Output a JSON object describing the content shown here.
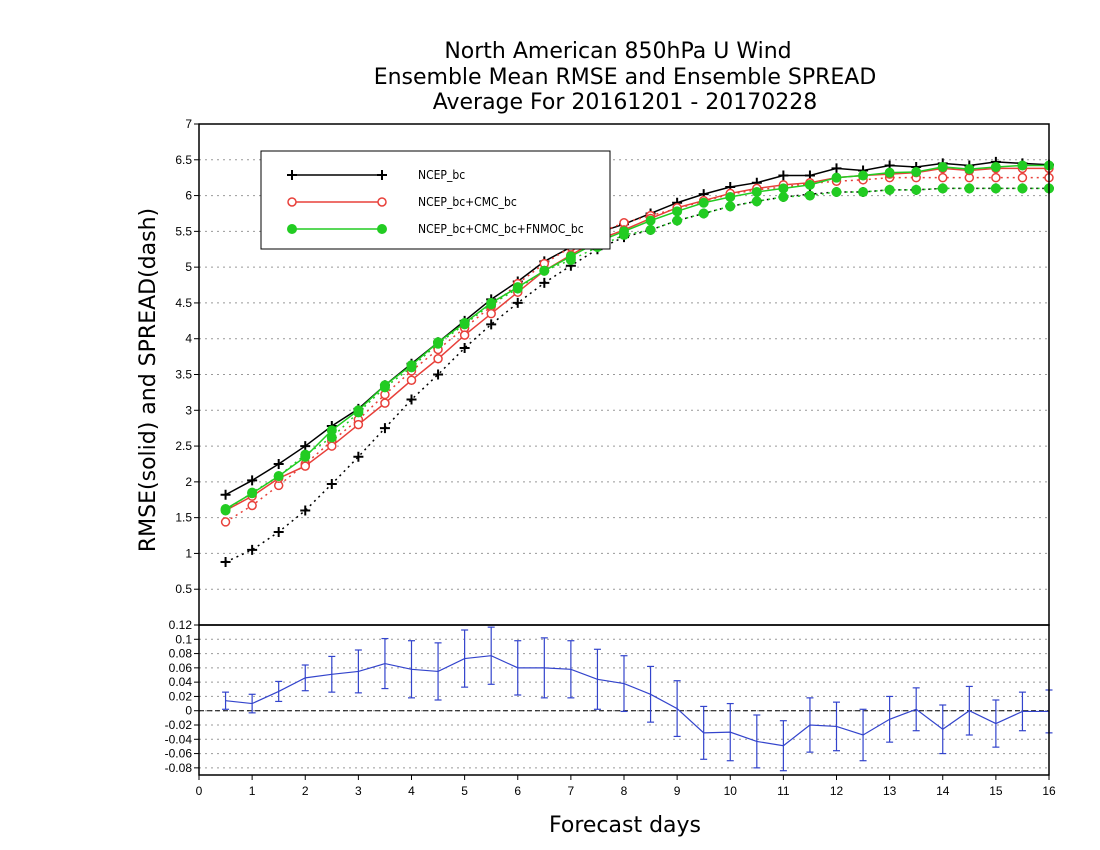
{
  "chart_data": [
    {
      "type": "line",
      "title_lines": [
        "North American 850hPa U Wind",
        "Ensemble Mean RMSE and Ensemble SPREAD",
        "Average For 20161201 - 20170228"
      ],
      "ylabel": "RMSE(solid) and SPREAD(dash)",
      "xlim": [
        0,
        16
      ],
      "ylim": [
        0,
        7
      ],
      "yticks": [
        "0.5",
        "1",
        "1.5",
        "2",
        "2.5",
        "3",
        "3.5",
        "4",
        "4.5",
        "5",
        "5.5",
        "6",
        "6.5",
        "7"
      ],
      "grid": true,
      "legend_placement": "top-left",
      "x": [
        0.5,
        1,
        1.5,
        2,
        2.5,
        3,
        3.5,
        4,
        4.5,
        5,
        5.5,
        6,
        6.5,
        7,
        7.5,
        8,
        8.5,
        9,
        9.5,
        10,
        10.5,
        11,
        11.5,
        12,
        12.5,
        13,
        13.5,
        14,
        14.5,
        15,
        15.5,
        16
      ],
      "series": [
        {
          "name": "NCEP_bc",
          "color": "#000000",
          "marker": "plus",
          "rmse": [
            1.82,
            2.02,
            2.25,
            2.5,
            2.78,
            3.02,
            3.35,
            3.65,
            3.95,
            4.25,
            4.55,
            4.8,
            5.08,
            5.28,
            5.48,
            5.6,
            5.75,
            5.9,
            6.02,
            6.12,
            6.18,
            6.28,
            6.28,
            6.38,
            6.35,
            6.42,
            6.4,
            6.45,
            6.42,
            6.47,
            6.45,
            6.43
          ],
          "spread": [
            0.88,
            1.05,
            1.3,
            1.6,
            1.97,
            2.35,
            2.75,
            3.15,
            3.5,
            3.87,
            4.2,
            4.5,
            4.78,
            5.02,
            5.25,
            5.42,
            5.52,
            5.65,
            5.75,
            5.85,
            5.92,
            5.98,
            6.02,
            6.05,
            6.05,
            6.08,
            6.08,
            6.1,
            6.1,
            6.1,
            6.1,
            6.1
          ]
        },
        {
          "name": "NCEP_bc+CMC_bc",
          "color": "#e8403a",
          "marker": "circle",
          "rmse": [
            1.6,
            1.8,
            2.05,
            2.22,
            2.5,
            2.8,
            3.1,
            3.42,
            3.72,
            4.05,
            4.35,
            4.65,
            4.95,
            5.17,
            5.38,
            5.52,
            5.68,
            5.83,
            5.93,
            6.03,
            6.1,
            6.15,
            6.18,
            6.25,
            6.28,
            6.3,
            6.32,
            6.38,
            6.35,
            6.38,
            6.38,
            6.38
          ],
          "spread": [
            1.44,
            1.67,
            1.95,
            2.25,
            2.57,
            2.87,
            3.22,
            3.55,
            3.85,
            4.15,
            4.45,
            4.77,
            5.05,
            5.28,
            5.47,
            5.62,
            5.72,
            5.82,
            5.92,
            6.02,
            6.08,
            6.12,
            6.17,
            6.2,
            6.22,
            6.25,
            6.25,
            6.25,
            6.25,
            6.25,
            6.25,
            6.25
          ]
        },
        {
          "name": "NCEP_bc+CMC_bc+FNMOC_bc",
          "color": "#22cc22",
          "marker": "dot",
          "rmse": [
            1.62,
            1.84,
            2.08,
            2.35,
            2.72,
            3.0,
            3.35,
            3.63,
            3.95,
            4.22,
            4.5,
            4.72,
            4.95,
            5.15,
            5.35,
            5.5,
            5.65,
            5.78,
            5.9,
            5.98,
            6.05,
            6.1,
            6.15,
            6.25,
            6.28,
            6.32,
            6.33,
            6.4,
            6.37,
            6.4,
            6.42,
            6.42
          ],
          "spread": [
            1.6,
            1.85,
            2.08,
            2.38,
            2.62,
            2.97,
            3.32,
            3.6,
            3.93,
            4.2,
            4.48,
            4.7,
            4.95,
            5.1,
            5.28,
            5.45,
            5.52,
            5.65,
            5.75,
            5.85,
            5.92,
            5.98,
            6.0,
            6.05,
            6.05,
            6.08,
            6.08,
            6.1,
            6.1,
            6.1,
            6.1,
            6.1
          ]
        }
      ]
    },
    {
      "type": "line",
      "xlabel": "Forecast days",
      "xlim": [
        0,
        16
      ],
      "xticks": [
        "0",
        "1",
        "2",
        "3",
        "4",
        "5",
        "6",
        "7",
        "8",
        "9",
        "10",
        "11",
        "12",
        "13",
        "14",
        "15",
        "16"
      ],
      "ylim": [
        -0.09,
        0.12
      ],
      "yticks": [
        "-0.08",
        "-0.06",
        "-0.04",
        "-0.02",
        "0",
        "0.02",
        "0.04",
        "0.06",
        "0.08",
        "0.1",
        "0.12"
      ],
      "grid": true,
      "reference_line": 0,
      "series": [
        {
          "color": "#3344cc",
          "x": [
            0.5,
            1,
            1.5,
            2,
            2.5,
            3,
            3.5,
            4,
            4.5,
            5,
            5.5,
            6,
            6.5,
            7,
            7.5,
            8,
            8.5,
            9,
            9.5,
            10,
            10.5,
            11,
            11.5,
            12,
            12.5,
            13,
            13.5,
            14,
            14.5,
            15,
            15.5,
            16
          ],
          "values": [
            0.014,
            0.01,
            0.027,
            0.046,
            0.051,
            0.055,
            0.066,
            0.058,
            0.055,
            0.073,
            0.077,
            0.06,
            0.06,
            0.058,
            0.044,
            0.038,
            0.023,
            0.003,
            -0.031,
            -0.03,
            -0.043,
            -0.049,
            -0.02,
            -0.022,
            -0.034,
            -0.012,
            0.002,
            -0.026,
            0.0,
            -0.018,
            -0.001,
            -0.001
          ],
          "errors": [
            0.012,
            0.013,
            0.014,
            0.018,
            0.025,
            0.03,
            0.035,
            0.04,
            0.04,
            0.04,
            0.04,
            0.038,
            0.042,
            0.04,
            0.042,
            0.039,
            0.039,
            0.039,
            0.037,
            0.04,
            0.037,
            0.035,
            0.038,
            0.034,
            0.036,
            0.032,
            0.03,
            0.034,
            0.034,
            0.033,
            0.027,
            0.03
          ]
        }
      ]
    }
  ]
}
